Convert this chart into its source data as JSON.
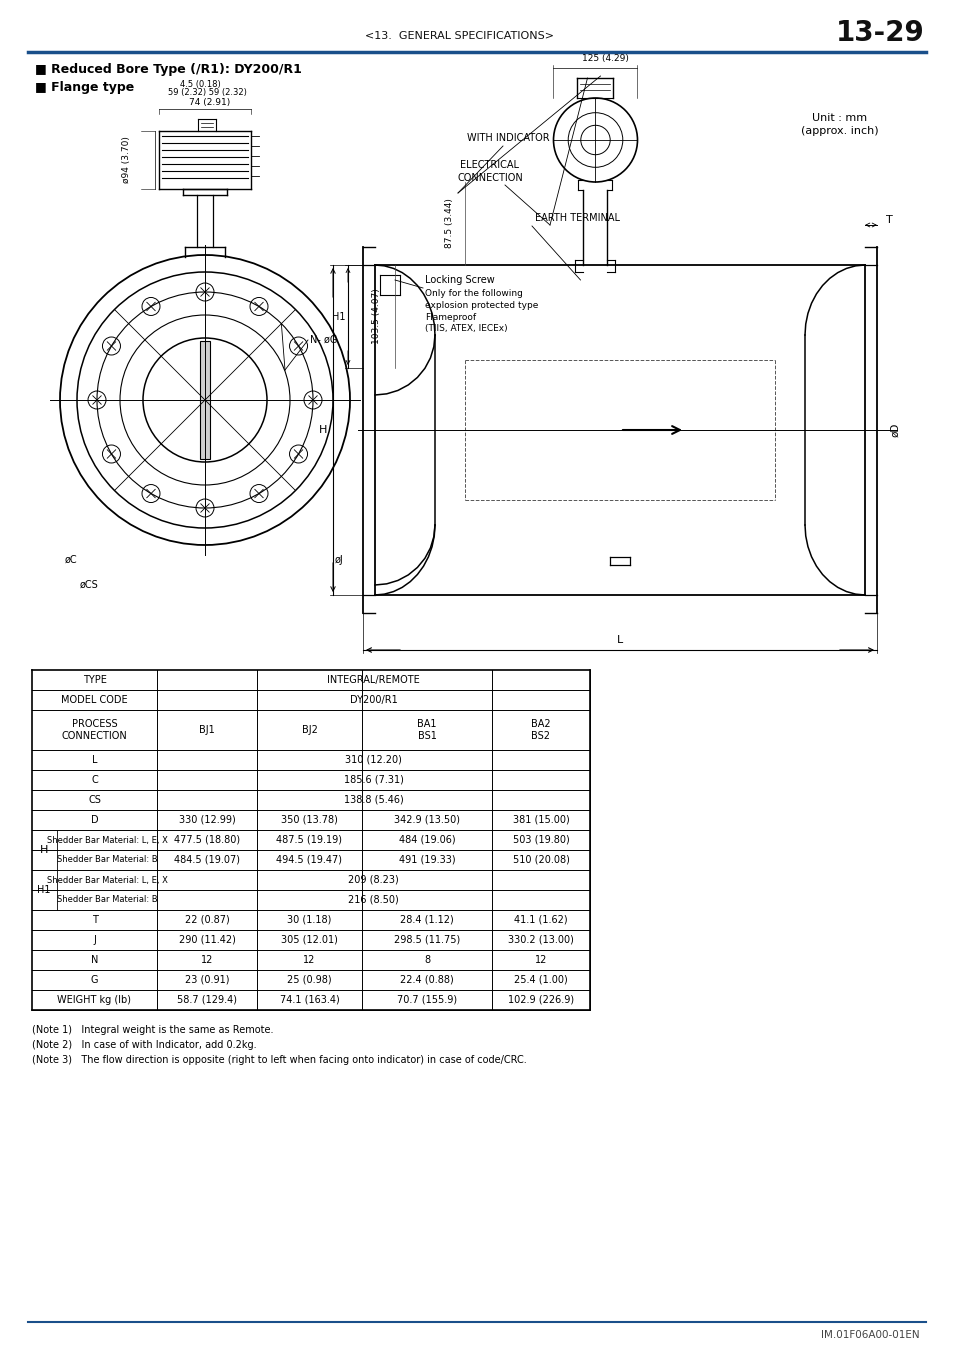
{
  "page_header_left": "<13.  GENERAL SPECIFICATIONS>",
  "page_header_right": "13-29",
  "header_line_color": "#1a4f8a",
  "section_title1": "■ Reduced Bore Type (/R1): DY200/R1",
  "section_title2": "■ Flange type",
  "unit_line1": "Unit : mm",
  "unit_line2": "(approx. inch)",
  "notes": [
    "(Note 1)   Integral weight is the same as Remote.",
    "(Note 2)   In case of with Indicator, add 0.2kg.",
    "(Note 3)   The flow direction is opposite (right to left when facing onto indicator) in case of code/CRC."
  ],
  "footer_text": "IM.01F06A00-01EN",
  "footer_line_color": "#1a4f8a",
  "bg_color": "#ffffff"
}
